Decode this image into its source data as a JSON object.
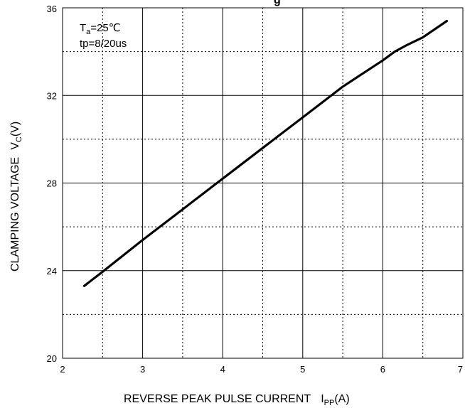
{
  "chart_data": {
    "type": "line",
    "title_fragment": "g",
    "xlabel": {
      "main": "REVERSE PEAK PULSE CURRENT",
      "symbol": "I",
      "subscript": "PP",
      "unit": "(A)"
    },
    "ylabel": {
      "main": "CLAMPING VOLTAGE",
      "symbol": "V",
      "subscript": "C",
      "unit": "(V)"
    },
    "xlim": [
      2,
      7
    ],
    "ylim": [
      20,
      36
    ],
    "x_ticks": [
      "2",
      "3",
      "4",
      "5",
      "6",
      "7"
    ],
    "y_ticks": [
      "20",
      "24",
      "28",
      "32",
      "36"
    ],
    "grid": {
      "major_x": [
        3,
        4,
        5,
        6
      ],
      "major_y": [
        24,
        28,
        32
      ],
      "minor_x": [
        2.5,
        3.5,
        4.5,
        5.5,
        6.5
      ],
      "minor_y": [
        22,
        26,
        30,
        34
      ]
    },
    "annotations": {
      "ta_symbol": "T",
      "ta_subscript": "a",
      "ta_value": "=25℃",
      "tp": "tp=8/20us"
    },
    "series": [
      {
        "x": [
          2.27,
          2.5,
          3.0,
          3.5,
          4.0,
          4.5,
          5.0,
          5.5,
          6.0,
          6.15,
          6.3,
          6.5,
          6.8
        ],
        "y": [
          23.3,
          23.95,
          25.4,
          26.8,
          28.2,
          29.6,
          31.0,
          32.4,
          33.6,
          34.0,
          34.3,
          34.65,
          35.4
        ]
      }
    ],
    "line_color": "#000000",
    "grid_color": "#000000"
  }
}
